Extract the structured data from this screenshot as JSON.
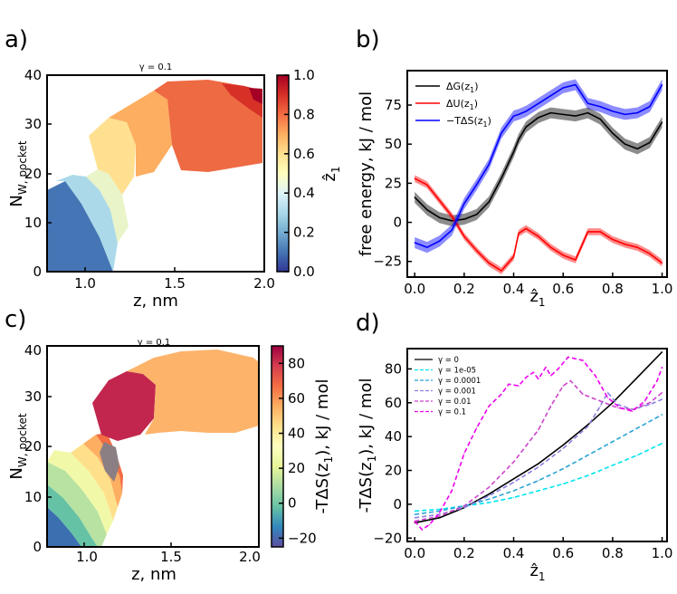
{
  "chart_data": [
    {
      "type": "heatmap",
      "panel_label": "a)",
      "title": "γ = 0.1",
      "xlabel": "z, nm",
      "ylabel": "N",
      "ylabel_sub": "W, pocket",
      "xlim": [
        0.8,
        2.0
      ],
      "ylim": [
        0,
        40
      ],
      "xticks": [
        "1.0",
        "1.5",
        "2.0"
      ],
      "yticks": [
        "0",
        "10",
        "20",
        "30",
        "40"
      ],
      "colorbar_label": "ẑ",
      "colorbar_label_sub": "1",
      "colorbar_ticks": [
        "0.0",
        "0.2",
        "0.4",
        "0.6",
        "0.8",
        "1.0"
      ],
      "colorbar_range": [
        0,
        1
      ]
    },
    {
      "type": "line",
      "panel_label": "b)",
      "xlabel": "ẑ",
      "xlabel_sub": "1",
      "ylabel": "free energy, kJ / mol",
      "xlim": [
        -0.03,
        1.02
      ],
      "ylim": [
        -35,
        97
      ],
      "xticks": [
        "0.0",
        "0.2",
        "0.4",
        "0.6",
        "0.8",
        "1.0"
      ],
      "yticks": [
        "−25",
        "0",
        "25",
        "50",
        "75"
      ],
      "x": [
        0.0,
        0.05,
        0.1,
        0.15,
        0.2,
        0.25,
        0.3,
        0.35,
        0.4,
        0.42,
        0.45,
        0.5,
        0.55,
        0.6,
        0.65,
        0.7,
        0.75,
        0.8,
        0.85,
        0.9,
        0.95,
        1.0
      ],
      "series": [
        {
          "name": "ΔG(z",
          "sub": "1",
          "close": ")",
          "color": "#000000",
          "values": [
            16,
            8,
            3,
            1,
            2,
            5,
            13,
            28,
            45,
            53,
            61,
            67,
            70,
            69,
            68,
            70,
            66,
            57,
            50,
            47,
            51,
            64
          ]
        },
        {
          "name": "ΔU(z",
          "sub": "1",
          "close": ")",
          "color": "#ff0000",
          "values": [
            28,
            24,
            14,
            4,
            -9,
            -18,
            -26,
            -31,
            -22,
            -7,
            -4,
            -9,
            -16,
            -21,
            -24,
            -6,
            -6,
            -11,
            -14,
            -16,
            -20,
            -26
          ]
        },
        {
          "name": "−TΔS(z",
          "sub": "1",
          "close": ")",
          "color": "#0000ff",
          "values": [
            -13,
            -16,
            -12,
            -5,
            12,
            24,
            37,
            57,
            68,
            69,
            71,
            76,
            81,
            86,
            88,
            76,
            74,
            71,
            69,
            70,
            74,
            88
          ]
        }
      ]
    },
    {
      "type": "heatmap",
      "panel_label": "c)",
      "title": "γ = 0.1",
      "xlabel": "z, nm",
      "ylabel": "N",
      "ylabel_sub": "W, pocket",
      "xlim": [
        0.8,
        2.0
      ],
      "ylim": [
        0,
        40
      ],
      "xticks": [
        "1.0",
        "1.5",
        "2.0"
      ],
      "yticks": [
        "0",
        "10",
        "20",
        "30",
        "40"
      ],
      "colorbar_label": "-TΔS(z",
      "colorbar_label_sub": "1",
      "colorbar_label_tail": "), kJ / mol",
      "colorbar_ticks": [
        "−20",
        "0",
        "20",
        "40",
        "60",
        "80"
      ],
      "colorbar_range": [
        -25,
        90
      ]
    },
    {
      "type": "line",
      "panel_label": "d)",
      "xlabel": "ẑ",
      "xlabel_sub": "1",
      "ylabel": "-TΔS(z",
      "ylabel_sub": "1",
      "ylabel_tail": "), kJ / mol",
      "xlim": [
        -0.03,
        1.02
      ],
      "ylim": [
        -22,
        92
      ],
      "xticks": [
        "0.0",
        "0.2",
        "0.4",
        "0.6",
        "0.8",
        "1.0"
      ],
      "yticks": [
        "−20",
        "0",
        "20",
        "40",
        "60",
        "80"
      ],
      "series": [
        {
          "name": "γ = 0",
          "color": "#000000",
          "dash": "",
          "x": [
            0,
            0.1,
            0.2,
            0.3,
            0.4,
            0.5,
            0.6,
            0.7,
            0.8,
            0.9,
            1.0
          ],
          "values": [
            -11,
            -8,
            -2,
            6,
            15,
            24,
            35,
            47,
            60,
            75,
            90
          ]
        },
        {
          "name": "γ = 1e-05",
          "color": "#00e5ee",
          "dash": "5,3",
          "x": [
            0,
            0.1,
            0.2,
            0.3,
            0.4,
            0.5,
            0.6,
            0.7,
            0.8,
            0.9,
            1.0
          ],
          "values": [
            -4,
            -3,
            -1,
            1,
            4,
            8,
            12,
            17,
            23,
            29,
            36
          ]
        },
        {
          "name": "γ = 0.0001",
          "color": "#29a3d6",
          "dash": "5,3",
          "x": [
            0,
            0.1,
            0.2,
            0.3,
            0.4,
            0.5,
            0.6,
            0.7,
            0.8,
            0.9,
            1.0
          ],
          "values": [
            -6,
            -4,
            -1,
            3,
            8,
            14,
            21,
            29,
            37,
            45,
            53
          ]
        },
        {
          "name": "γ = 0.001",
          "color": "#8a7fe0",
          "dash": "5,3",
          "x": [
            0,
            0.1,
            0.2,
            0.3,
            0.4,
            0.5,
            0.6,
            0.7,
            0.75,
            0.78,
            0.82,
            0.88,
            0.95,
            1.0
          ],
          "values": [
            -8,
            -6,
            -2,
            5,
            13,
            22,
            33,
            46,
            58,
            66,
            59,
            56,
            59,
            62
          ]
        },
        {
          "name": "γ = 0.01",
          "color": "#cc44cc",
          "dash": "5,3",
          "x": [
            0,
            0.1,
            0.2,
            0.3,
            0.4,
            0.5,
            0.55,
            0.6,
            0.63,
            0.68,
            0.75,
            0.82,
            0.88,
            0.95,
            1.0
          ],
          "values": [
            -10,
            -7,
            -1,
            10,
            25,
            44,
            58,
            70,
            73,
            65,
            61,
            57,
            56,
            60,
            66
          ]
        },
        {
          "name": "γ = 0.1",
          "color": "#ee00ee",
          "dash": "5,3",
          "x": [
            0,
            0.03,
            0.06,
            0.1,
            0.15,
            0.2,
            0.25,
            0.3,
            0.35,
            0.38,
            0.42,
            0.45,
            0.48,
            0.5,
            0.53,
            0.55,
            0.58,
            0.62,
            0.68,
            0.73,
            0.78,
            0.83,
            0.88,
            0.93,
            0.98,
            1.0
          ],
          "values": [
            -10,
            -15,
            -12,
            -5,
            8,
            30,
            45,
            58,
            65,
            71,
            70,
            75,
            78,
            74,
            81,
            76,
            80,
            87,
            85,
            76,
            63,
            57,
            55,
            61,
            73,
            81
          ]
        }
      ]
    }
  ]
}
